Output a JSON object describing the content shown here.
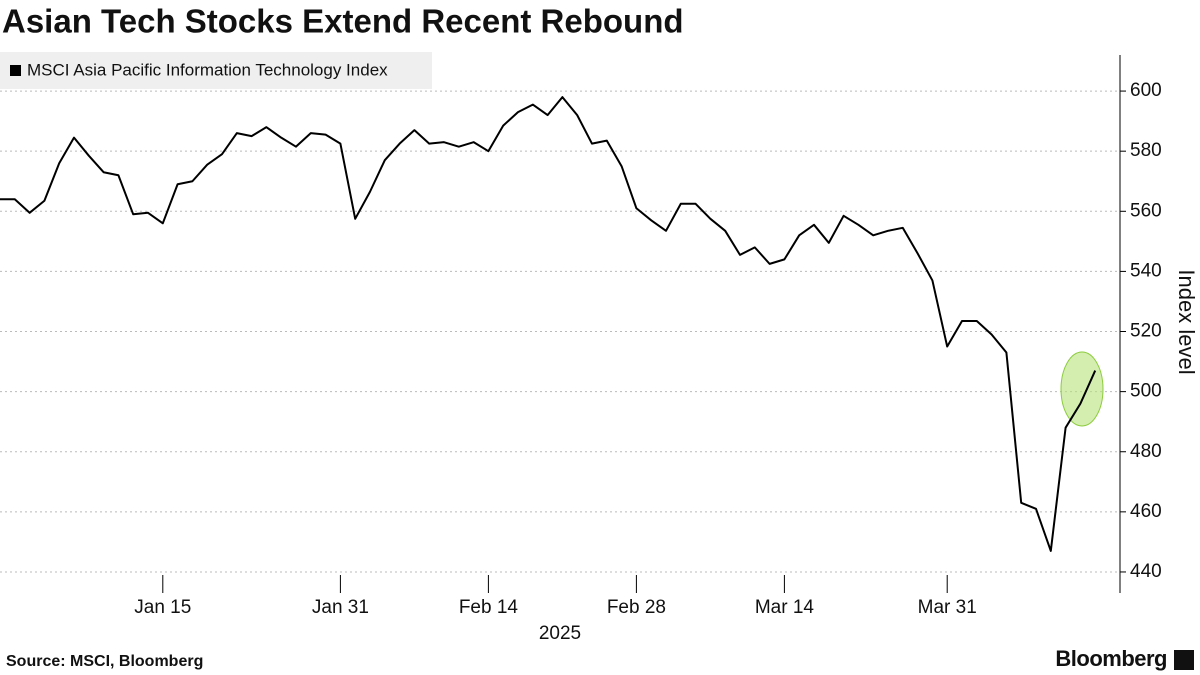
{
  "chart_data": {
    "type": "line",
    "title": "Asian Tech Stocks Extend Recent Rebound",
    "source": "Source: MSCI, Bloomberg",
    "brand": "Bloomberg",
    "xlabel": "2025",
    "ylabel": "Index level",
    "x": [
      "2024-12-30",
      "2024-12-31",
      "2025-01-02",
      "2025-01-03",
      "2025-01-06",
      "2025-01-07",
      "2025-01-08",
      "2025-01-09",
      "2025-01-10",
      "2025-01-13",
      "2025-01-14",
      "2025-01-15",
      "2025-01-16",
      "2025-01-17",
      "2025-01-20",
      "2025-01-21",
      "2025-01-22",
      "2025-01-23",
      "2025-01-24",
      "2025-01-27",
      "2025-01-28",
      "2025-01-29",
      "2025-01-30",
      "2025-01-31",
      "2025-02-03",
      "2025-02-04",
      "2025-02-05",
      "2025-02-06",
      "2025-02-07",
      "2025-02-10",
      "2025-02-11",
      "2025-02-12",
      "2025-02-13",
      "2025-02-14",
      "2025-02-17",
      "2025-02-18",
      "2025-02-19",
      "2025-02-20",
      "2025-02-21",
      "2025-02-24",
      "2025-02-25",
      "2025-02-26",
      "2025-02-27",
      "2025-02-28",
      "2025-03-03",
      "2025-03-04",
      "2025-03-05",
      "2025-03-06",
      "2025-03-07",
      "2025-03-10",
      "2025-03-11",
      "2025-03-12",
      "2025-03-13",
      "2025-03-14",
      "2025-03-17",
      "2025-03-18",
      "2025-03-19",
      "2025-03-20",
      "2025-03-21",
      "2025-03-24",
      "2025-03-25",
      "2025-03-26",
      "2025-03-27",
      "2025-03-28",
      "2025-03-31",
      "2025-04-01",
      "2025-04-02",
      "2025-04-03",
      "2025-04-04",
      "2025-04-07",
      "2025-04-08",
      "2025-04-09",
      "2025-04-10",
      "2025-04-11",
      "2025-04-14"
    ],
    "series": [
      {
        "name": "MSCI Asia Pacific Information Technology Index",
        "color": "#000000",
        "values": [
          564,
          564,
          559.5,
          563.5,
          576,
          584.5,
          578.5,
          573,
          572,
          559,
          559.5,
          556,
          569,
          570,
          575.5,
          579,
          586,
          585,
          588,
          584.5,
          581.5,
          586,
          585.5,
          582.5,
          557.5,
          566.5,
          577,
          582.5,
          587,
          582.5,
          583,
          581.5,
          583,
          580,
          588.5,
          593,
          595.5,
          592,
          598,
          592,
          582.5,
          583.5,
          575,
          561,
          557,
          553.5,
          562.5,
          562.5,
          557.5,
          553.5,
          545.5,
          548,
          542.5,
          544,
          552,
          555.5,
          549.5,
          558.5,
          555.5,
          552,
          553.5,
          554.5,
          546,
          537,
          515,
          523.5,
          523.5,
          519,
          513,
          463,
          461,
          447,
          488,
          496,
          507
        ]
      }
    ],
    "xticks": [
      {
        "value": "2025-01-15",
        "label": "Jan 15"
      },
      {
        "value": "2025-01-31",
        "label": "Jan 31"
      },
      {
        "value": "2025-02-14",
        "label": "Feb 14"
      },
      {
        "value": "2025-02-28",
        "label": "Feb 28"
      },
      {
        "value": "2025-03-14",
        "label": "Mar 14"
      },
      {
        "value": "2025-03-31",
        "label": "Mar 31"
      }
    ],
    "ylim": [
      433,
      612
    ],
    "yticks": [
      440,
      460,
      480,
      500,
      520,
      540,
      560,
      580,
      600
    ],
    "grid": true,
    "legend": "top-left"
  }
}
